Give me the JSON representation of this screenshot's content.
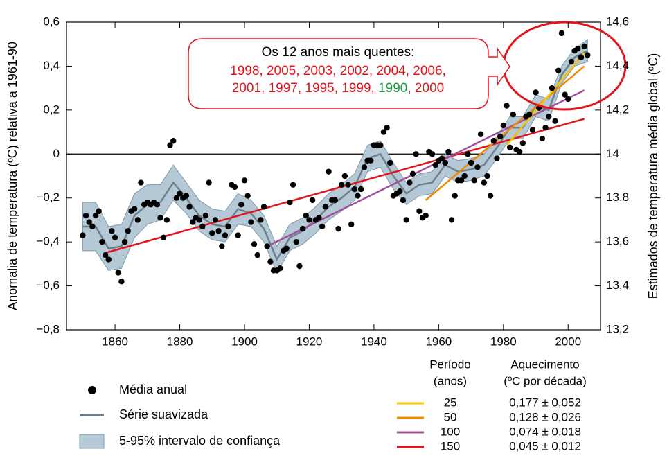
{
  "chart_data": {
    "type": "line",
    "ylabel": "Anomalia de temperatura (ºC) relativa a 1961-90",
    "y2label": "Estimados de temperatura média global (ºC)",
    "xlim": [
      1845,
      2010
    ],
    "ylim": [
      -0.8,
      0.6
    ],
    "y2lim": [
      13.2,
      14.6
    ],
    "xticks": [
      1860,
      1880,
      1900,
      1920,
      1940,
      1960,
      1980,
      2000
    ],
    "yticks": [
      {
        "value": 0.6,
        "label": "0,6"
      },
      {
        "value": 0.4,
        "label": "0,4"
      },
      {
        "value": 0.2,
        "label": "0,2"
      },
      0,
      {
        "value": -0.2,
        "label": "−0,2"
      },
      {
        "value": -0.4,
        "label": "−0,4"
      },
      {
        "value": -0.6,
        "label": "−0,6"
      },
      {
        "value": -0.8,
        "label": "−0,8"
      }
    ],
    "y2ticks": [
      {
        "value": 14.6,
        "label": "14,6"
      },
      {
        "value": 14.4,
        "label": "14,4"
      },
      {
        "value": 14.2,
        "label": "14,2"
      },
      14,
      {
        "value": 13.8,
        "label": "13,8"
      },
      {
        "value": 13.6,
        "label": "13,6"
      },
      {
        "value": 13.4,
        "label": "13,4"
      },
      {
        "value": 13.2,
        "label": "13,2"
      }
    ],
    "series": [
      {
        "name": "Média anual",
        "type": "scatter",
        "color": "#000000",
        "x": [
          1850,
          1851,
          1852,
          1853,
          1854,
          1855,
          1856,
          1857,
          1858,
          1859,
          1860,
          1861,
          1862,
          1863,
          1864,
          1865,
          1866,
          1867,
          1868,
          1869,
          1870,
          1871,
          1872,
          1873,
          1874,
          1875,
          1876,
          1877,
          1878,
          1879,
          1880,
          1881,
          1882,
          1883,
          1884,
          1885,
          1886,
          1887,
          1888,
          1889,
          1890,
          1891,
          1892,
          1893,
          1894,
          1895,
          1896,
          1897,
          1898,
          1899,
          1900,
          1901,
          1902,
          1903,
          1904,
          1905,
          1906,
          1907,
          1908,
          1909,
          1910,
          1911,
          1912,
          1913,
          1914,
          1915,
          1916,
          1917,
          1918,
          1919,
          1920,
          1921,
          1922,
          1923,
          1924,
          1925,
          1926,
          1927,
          1928,
          1929,
          1930,
          1931,
          1932,
          1933,
          1934,
          1935,
          1936,
          1937,
          1938,
          1939,
          1940,
          1941,
          1942,
          1943,
          1944,
          1945,
          1946,
          1947,
          1948,
          1949,
          1950,
          1951,
          1952,
          1953,
          1954,
          1955,
          1956,
          1957,
          1958,
          1959,
          1960,
          1961,
          1962,
          1963,
          1964,
          1965,
          1966,
          1967,
          1968,
          1969,
          1970,
          1971,
          1972,
          1973,
          1974,
          1975,
          1976,
          1977,
          1978,
          1979,
          1980,
          1981,
          1982,
          1983,
          1984,
          1985,
          1986,
          1987,
          1988,
          1989,
          1990,
          1991,
          1992,
          1993,
          1994,
          1995,
          1996,
          1997,
          1998,
          1999,
          2000,
          2001,
          2002,
          2003,
          2004,
          2005,
          2006
        ],
        "values": [
          -0.37,
          -0.28,
          -0.31,
          -0.33,
          -0.28,
          -0.26,
          -0.4,
          -0.46,
          -0.48,
          -0.35,
          -0.38,
          -0.54,
          -0.58,
          -0.4,
          -0.35,
          -0.26,
          -0.25,
          -0.3,
          -0.13,
          -0.23,
          -0.22,
          -0.23,
          -0.22,
          -0.23,
          -0.29,
          -0.38,
          -0.3,
          0.04,
          0.06,
          -0.2,
          -0.18,
          -0.2,
          -0.19,
          -0.24,
          -0.31,
          -0.29,
          -0.3,
          -0.33,
          -0.28,
          -0.13,
          -0.36,
          -0.3,
          -0.35,
          -0.42,
          -0.37,
          -0.33,
          -0.14,
          -0.15,
          -0.37,
          -0.23,
          -0.12,
          -0.19,
          -0.31,
          -0.41,
          -0.46,
          -0.3,
          -0.24,
          -0.42,
          -0.49,
          -0.53,
          -0.53,
          -0.52,
          -0.44,
          -0.43,
          -0.22,
          -0.14,
          -0.4,
          -0.51,
          -0.34,
          -0.28,
          -0.3,
          -0.21,
          -0.3,
          -0.29,
          -0.33,
          -0.24,
          -0.08,
          -0.21,
          -0.21,
          -0.34,
          -0.14,
          -0.1,
          -0.14,
          -0.32,
          -0.16,
          -0.19,
          -0.16,
          -0.06,
          -0.03,
          -0.03,
          0.04,
          0.04,
          0.04,
          0.1,
          0.12,
          -0.04,
          -0.19,
          -0.18,
          -0.17,
          -0.21,
          -0.3,
          -0.13,
          -0.09,
          0.0,
          -0.26,
          -0.29,
          -0.28,
          0.01,
          0.0,
          -0.05,
          -0.03,
          -0.02,
          -0.04,
          0.01,
          -0.3,
          -0.19,
          -0.12,
          -0.12,
          -0.1,
          0.0,
          -0.04,
          -0.12,
          -0.06,
          0.09,
          -0.13,
          -0.1,
          -0.19,
          0.06,
          -0.02,
          0.08,
          0.13,
          0.22,
          0.03,
          0.18,
          0.02,
          0.01,
          0.05,
          0.17,
          0.18,
          0.11,
          0.28,
          0.21,
          0.07,
          0.12,
          0.17,
          0.3,
          0.15,
          0.38,
          0.55,
          0.27,
          0.25,
          0.42,
          0.47,
          0.48,
          0.44,
          0.49,
          0.45
        ]
      },
      {
        "name": "Série suavizada",
        "type": "line",
        "color": "#6e7f8b",
        "x": [
          1850,
          1854,
          1858,
          1862,
          1866,
          1870,
          1874,
          1878,
          1882,
          1886,
          1890,
          1894,
          1898,
          1902,
          1906,
          1910,
          1914,
          1918,
          1922,
          1926,
          1930,
          1934,
          1938,
          1942,
          1946,
          1950,
          1954,
          1958,
          1962,
          1966,
          1970,
          1974,
          1978,
          1982,
          1986,
          1990,
          1994,
          1998,
          2002,
          2006
        ],
        "values": [
          -0.33,
          -0.33,
          -0.43,
          -0.42,
          -0.28,
          -0.23,
          -0.22,
          -0.13,
          -0.2,
          -0.28,
          -0.32,
          -0.33,
          -0.25,
          -0.27,
          -0.34,
          -0.48,
          -0.38,
          -0.35,
          -0.3,
          -0.24,
          -0.2,
          -0.15,
          -0.02,
          0.0,
          -0.1,
          -0.18,
          -0.14,
          -0.13,
          -0.05,
          -0.08,
          -0.07,
          -0.05,
          0.03,
          0.12,
          0.12,
          0.22,
          0.2,
          0.36,
          0.44,
          0.47
        ]
      },
      {
        "name": "5-95% intervalo de confiança",
        "type": "band",
        "color": "#b4c8d6",
        "stroke": "#7f98aa",
        "x": [
          1850,
          1854,
          1858,
          1862,
          1866,
          1870,
          1874,
          1878,
          1882,
          1886,
          1890,
          1894,
          1898,
          1902,
          1906,
          1910,
          1914,
          1918,
          1922,
          1926,
          1930,
          1934,
          1938,
          1942,
          1946,
          1950,
          1954,
          1958,
          1962,
          1966,
          1970,
          1974,
          1978,
          1982,
          1986,
          1990,
          1994,
          1998,
          2002,
          2006
        ],
        "lower": [
          -0.44,
          -0.44,
          -0.53,
          -0.52,
          -0.38,
          -0.32,
          -0.3,
          -0.21,
          -0.27,
          -0.35,
          -0.39,
          -0.4,
          -0.32,
          -0.33,
          -0.4,
          -0.54,
          -0.44,
          -0.41,
          -0.36,
          -0.3,
          -0.26,
          -0.21,
          -0.08,
          -0.06,
          -0.16,
          -0.23,
          -0.19,
          -0.18,
          -0.1,
          -0.13,
          -0.12,
          -0.1,
          -0.02,
          0.07,
          0.07,
          0.17,
          0.15,
          0.32,
          0.4,
          0.42
        ],
        "upper": [
          -0.22,
          -0.22,
          -0.33,
          -0.32,
          -0.18,
          -0.14,
          -0.14,
          -0.05,
          -0.13,
          -0.21,
          -0.25,
          -0.26,
          -0.18,
          -0.21,
          -0.28,
          -0.42,
          -0.32,
          -0.29,
          -0.24,
          -0.18,
          -0.14,
          -0.09,
          0.04,
          0.06,
          -0.04,
          -0.13,
          -0.09,
          -0.08,
          0.0,
          -0.03,
          -0.02,
          0.0,
          0.08,
          0.17,
          0.17,
          0.27,
          0.25,
          0.4,
          0.48,
          0.52
        ]
      }
    ],
    "trends": {
      "header": {
        "period": [
          "Período",
          "(anos)"
        ],
        "warming": [
          "Aquecimento",
          "(ºC por década)"
        ]
      },
      "lines": [
        {
          "period": 25,
          "color": "#f6c400",
          "x": [
            1981,
            2005
          ],
          "values": [
            0.04,
            0.46
          ],
          "warming": "0,177 ± 0,052"
        },
        {
          "period": 50,
          "color": "#f08a00",
          "x": [
            1956,
            2005
          ],
          "values": [
            -0.21,
            0.4
          ],
          "warming": "0,128 ± 0,026"
        },
        {
          "period": 100,
          "color": "#a24d9e",
          "x": [
            1907,
            2005
          ],
          "values": [
            -0.42,
            0.29
          ],
          "warming": "0,074 ± 0,018"
        },
        {
          "period": 150,
          "color": "#e2141e",
          "x": [
            1857,
            2005
          ],
          "values": [
            -0.45,
            0.16
          ],
          "warming": "0,045 ± 0,012"
        }
      ]
    },
    "annotation": {
      "title": "Os 12 anos mais quentes:",
      "color": "#e3141b",
      "lines": [
        [
          {
            "text": "1998, 2005, 2003, 2002, 2004, 2006,"
          }
        ],
        [
          {
            "text": "2001, 1997, 1995, 1999, "
          },
          {
            "text": "1990",
            "color": "#18a03c"
          },
          {
            "text": ", 2000"
          }
        ]
      ]
    }
  }
}
